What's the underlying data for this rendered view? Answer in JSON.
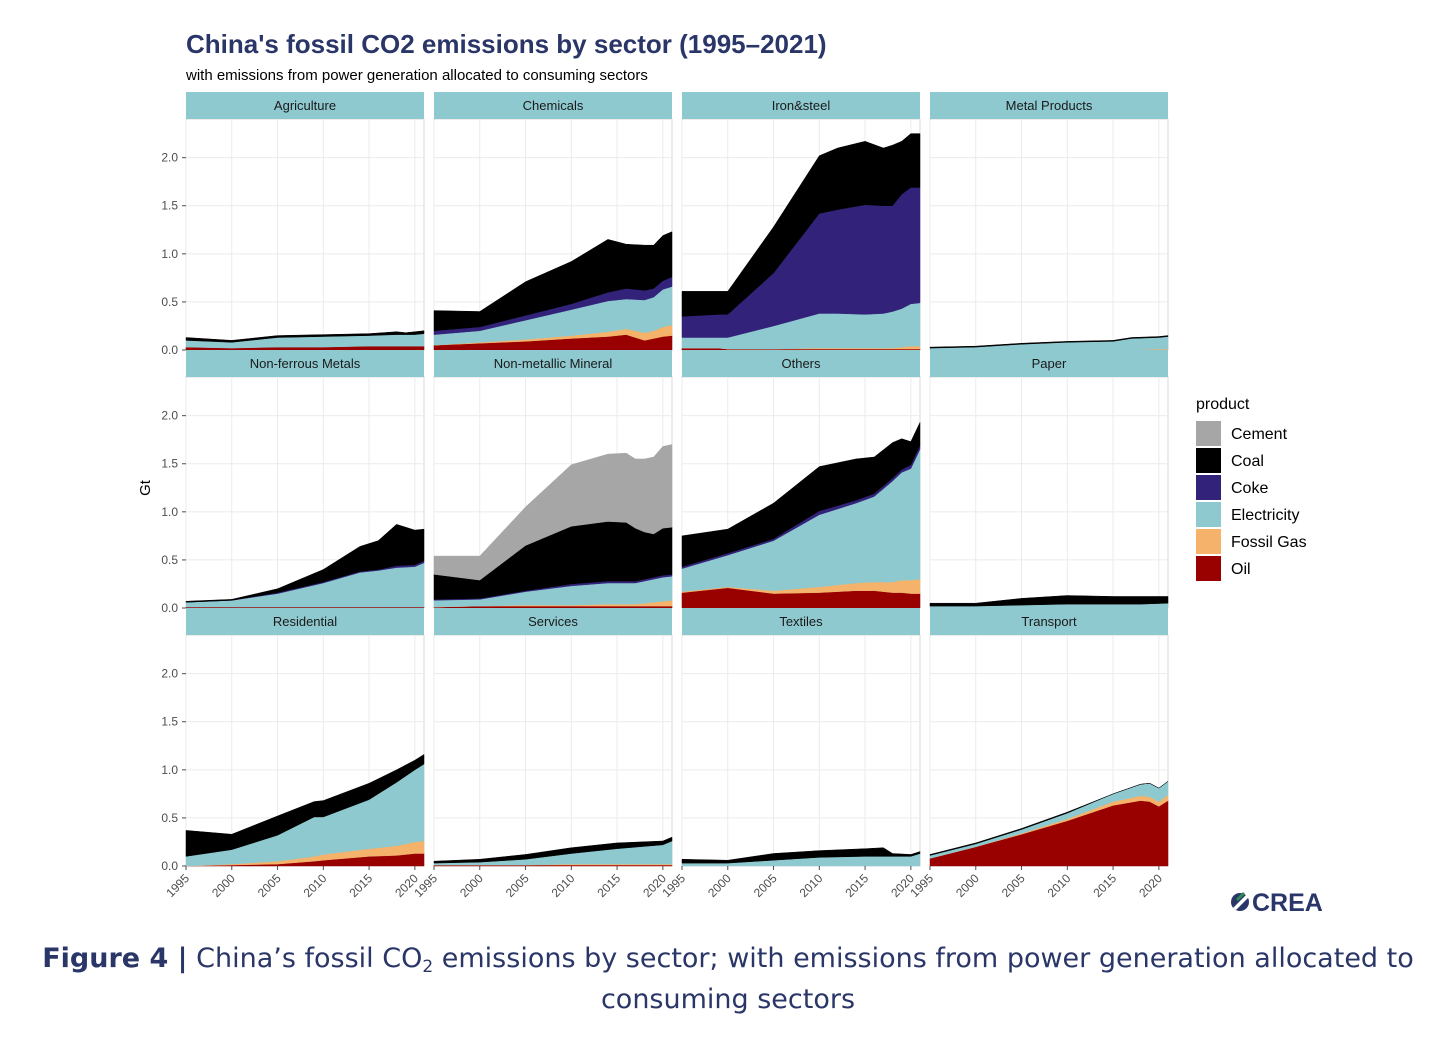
{
  "header": {
    "title": "China's fossil CO2 emissions by sector (1995–2021)",
    "subtitle": "with emissions from power generation allocated to consuming sectors"
  },
  "caption": {
    "label": "Figure 4 |",
    "text_a": "China’s fossil CO",
    "subscript": "2",
    "text_b": " emissions by sector; with emissions from power generation allocated to consuming sectors"
  },
  "logo": {
    "text": "CREA",
    "color": "#2a3668",
    "accent": "#2e8b57"
  },
  "chart_data": {
    "type": "area",
    "stacked": true,
    "facet_wrap": [
      3,
      4
    ],
    "ylabel": "Gt",
    "ylim": [
      0,
      2.35
    ],
    "yticks": [
      0,
      0.5,
      1,
      1.5,
      2
    ],
    "ytick_labels": [
      "0.0",
      "0.5",
      "1.0",
      "1.5",
      "2.0"
    ],
    "xlim": [
      1995,
      2021
    ],
    "xticks": [
      1995,
      2000,
      2005,
      2010,
      2015,
      2020
    ],
    "xtick_labels": [
      "1995",
      "2000",
      "2005",
      "2010",
      "2015",
      "2020"
    ],
    "grid": true,
    "legend": {
      "title": "product",
      "position": "right",
      "items": [
        {
          "name": "Cement",
          "color": "#a6a6a6"
        },
        {
          "name": "Coal",
          "color": "#000000"
        },
        {
          "name": "Coke",
          "color": "#33227a"
        },
        {
          "name": "Electricity",
          "color": "#8ec9d0"
        },
        {
          "name": "Fossil Gas",
          "color": "#f4b26b"
        },
        {
          "name": "Oil",
          "color": "#990000"
        }
      ]
    },
    "stack_order": [
      "Oil",
      "Fossil Gas",
      "Electricity",
      "Coke",
      "Coal",
      "Cement"
    ],
    "panels": [
      {
        "name": "Agriculture",
        "x": [
          1995,
          2000,
          2005,
          2010,
          2015,
          2018,
          2019,
          2020,
          2021
        ],
        "series": {
          "Oil": [
            0.03,
            0.02,
            0.03,
            0.03,
            0.04,
            0.04,
            0.04,
            0.04,
            0.04
          ],
          "Fossil Gas": [
            0,
            0,
            0,
            0,
            0,
            0,
            0,
            0,
            0
          ],
          "Electricity": [
            0.07,
            0.06,
            0.1,
            0.11,
            0.11,
            0.12,
            0.12,
            0.12,
            0.13
          ],
          "Coke": [
            0,
            0,
            0,
            0,
            0,
            0,
            0,
            0,
            0
          ],
          "Coal": [
            0.03,
            0.02,
            0.02,
            0.02,
            0.02,
            0.03,
            0.02,
            0.03,
            0.03
          ],
          "Cement": [
            0,
            0,
            0,
            0,
            0,
            0,
            0,
            0,
            0
          ]
        }
      },
      {
        "name": "Chemicals",
        "x": [
          1995,
          2000,
          2005,
          2010,
          2014,
          2016,
          2018,
          2019,
          2020,
          2021
        ],
        "series": {
          "Oil": [
            0.05,
            0.07,
            0.09,
            0.12,
            0.14,
            0.16,
            0.1,
            0.12,
            0.14,
            0.15
          ],
          "Fossil Gas": [
            0,
            0.01,
            0.02,
            0.03,
            0.05,
            0.06,
            0.08,
            0.08,
            0.1,
            0.11
          ],
          "Electricity": [
            0.11,
            0.12,
            0.2,
            0.27,
            0.32,
            0.31,
            0.34,
            0.35,
            0.39,
            0.4
          ],
          "Coke": [
            0.04,
            0.04,
            0.05,
            0.06,
            0.09,
            0.11,
            0.1,
            0.09,
            0.09,
            0.1
          ],
          "Coal": [
            0.21,
            0.16,
            0.35,
            0.44,
            0.55,
            0.46,
            0.47,
            0.45,
            0.47,
            0.47
          ],
          "Cement": [
            0,
            0,
            0,
            0,
            0,
            0,
            0,
            0,
            0,
            0
          ]
        }
      },
      {
        "name": "Iron&steel",
        "x": [
          1995,
          1999,
          2000,
          2005,
          2010,
          2012,
          2015,
          2017,
          2018,
          2019,
          2020,
          2021
        ],
        "series": {
          "Oil": [
            0.02,
            0.02,
            0.01,
            0.01,
            0.01,
            0.01,
            0.01,
            0.01,
            0.01,
            0.01,
            0.01,
            0.01
          ],
          "Fossil Gas": [
            0,
            0,
            0,
            0,
            0.01,
            0.01,
            0.01,
            0.01,
            0.01,
            0.02,
            0.03,
            0.03
          ],
          "Electricity": [
            0.11,
            0.11,
            0.12,
            0.24,
            0.36,
            0.36,
            0.35,
            0.36,
            0.38,
            0.4,
            0.44,
            0.45
          ],
          "Coke": [
            0.22,
            0.24,
            0.24,
            0.55,
            1.04,
            1.08,
            1.14,
            1.12,
            1.1,
            1.19,
            1.21,
            1.2
          ],
          "Coal": [
            0.26,
            0.24,
            0.24,
            0.48,
            0.6,
            0.64,
            0.66,
            0.6,
            0.63,
            0.55,
            0.56,
            0.56
          ],
          "Cement": [
            0,
            0,
            0,
            0,
            0,
            0,
            0,
            0,
            0,
            0,
            0,
            0
          ]
        }
      },
      {
        "name": "Metal Products",
        "x": [
          1995,
          2000,
          2005,
          2010,
          2015,
          2017,
          2020,
          2021
        ],
        "series": {
          "Oil": [
            0,
            0,
            0,
            0,
            0,
            0,
            0,
            0
          ],
          "Fossil Gas": [
            0,
            0,
            0,
            0,
            0,
            0,
            0.01,
            0.01
          ],
          "Electricity": [
            0.02,
            0.03,
            0.06,
            0.08,
            0.09,
            0.12,
            0.12,
            0.13
          ],
          "Coke": [
            0,
            0,
            0,
            0,
            0,
            0,
            0,
            0
          ],
          "Coal": [
            0.01,
            0.01,
            0.01,
            0.01,
            0.01,
            0.01,
            0.01,
            0.01
          ],
          "Cement": [
            0,
            0,
            0,
            0,
            0,
            0,
            0,
            0
          ]
        }
      },
      {
        "name": "Non-ferrous Metals",
        "x": [
          1995,
          2000,
          2005,
          2010,
          2014,
          2016,
          2018,
          2020,
          2021
        ],
        "series": {
          "Oil": [
            0.01,
            0.01,
            0.01,
            0.01,
            0.01,
            0.01,
            0.01,
            0.01,
            0.01
          ],
          "Fossil Gas": [
            0,
            0,
            0,
            0,
            0,
            0,
            0,
            0,
            0
          ],
          "Electricity": [
            0.05,
            0.07,
            0.14,
            0.25,
            0.36,
            0.38,
            0.41,
            0.42,
            0.46
          ],
          "Coke": [
            0,
            0,
            0.01,
            0.01,
            0.01,
            0.01,
            0.02,
            0.02,
            0.02
          ],
          "Coal": [
            0.01,
            0.01,
            0.04,
            0.13,
            0.26,
            0.3,
            0.43,
            0.36,
            0.33
          ],
          "Cement": [
            0,
            0,
            0,
            0,
            0,
            0,
            0,
            0,
            0
          ]
        }
      },
      {
        "name": "Non-metallic Mineral",
        "x": [
          1995,
          2000,
          2005,
          2010,
          2014,
          2016,
          2017,
          2018,
          2019,
          2020,
          2021
        ],
        "series": {
          "Oil": [
            0.01,
            0.02,
            0.02,
            0.02,
            0.02,
            0.02,
            0.02,
            0.02,
            0.02,
            0.02,
            0.02
          ],
          "Fossil Gas": [
            0,
            0,
            0.01,
            0.01,
            0.02,
            0.02,
            0.02,
            0.03,
            0.04,
            0.05,
            0.06
          ],
          "Electricity": [
            0.07,
            0.07,
            0.14,
            0.2,
            0.22,
            0.22,
            0.22,
            0.23,
            0.24,
            0.25,
            0.25
          ],
          "Coke": [
            0.01,
            0.01,
            0.01,
            0.02,
            0.02,
            0.02,
            0.02,
            0.02,
            0.02,
            0.02,
            0.02
          ],
          "Coal": [
            0.26,
            0.19,
            0.47,
            0.6,
            0.62,
            0.61,
            0.55,
            0.49,
            0.45,
            0.49,
            0.49
          ],
          "Cement": [
            0.19,
            0.25,
            0.4,
            0.64,
            0.7,
            0.72,
            0.72,
            0.76,
            0.8,
            0.85,
            0.86
          ]
        }
      },
      {
        "name": "Others",
        "x": [
          1995,
          2000,
          2005,
          2010,
          2014,
          2016,
          2018,
          2019,
          2020,
          2021
        ],
        "series": {
          "Oil": [
            0.16,
            0.21,
            0.15,
            0.16,
            0.18,
            0.18,
            0.16,
            0.16,
            0.15,
            0.15
          ],
          "Fossil Gas": [
            0.01,
            0.01,
            0.03,
            0.06,
            0.08,
            0.09,
            0.11,
            0.13,
            0.14,
            0.15
          ],
          "Electricity": [
            0.24,
            0.33,
            0.52,
            0.75,
            0.83,
            0.89,
            1.05,
            1.12,
            1.16,
            1.35
          ],
          "Coke": [
            0.02,
            0.02,
            0.02,
            0.04,
            0.03,
            0.03,
            0.03,
            0.03,
            0.04,
            0.04
          ],
          "Coal": [
            0.32,
            0.25,
            0.37,
            0.46,
            0.43,
            0.38,
            0.37,
            0.32,
            0.24,
            0.24
          ],
          "Cement": [
            0,
            0,
            0,
            0,
            0,
            0,
            0,
            0,
            0,
            0
          ]
        }
      },
      {
        "name": "Paper",
        "x": [
          1995,
          2000,
          2005,
          2010,
          2015,
          2018,
          2021
        ],
        "series": {
          "Oil": [
            0,
            0,
            0,
            0,
            0,
            0,
            0
          ],
          "Fossil Gas": [
            0,
            0,
            0,
            0,
            0,
            0,
            0
          ],
          "Electricity": [
            0.02,
            0.02,
            0.03,
            0.04,
            0.04,
            0.04,
            0.05
          ],
          "Coke": [
            0,
            0,
            0,
            0,
            0,
            0,
            0
          ],
          "Coal": [
            0.03,
            0.03,
            0.07,
            0.09,
            0.08,
            0.08,
            0.07
          ],
          "Cement": [
            0,
            0,
            0,
            0,
            0,
            0,
            0
          ]
        }
      },
      {
        "name": "Residential",
        "x": [
          1995,
          2000,
          2005,
          2009,
          2010,
          2015,
          2018,
          2020,
          2021
        ],
        "series": {
          "Oil": [
            0,
            0.01,
            0.02,
            0.05,
            0.06,
            0.1,
            0.11,
            0.13,
            0.13
          ],
          "Fossil Gas": [
            0,
            0.01,
            0.03,
            0.05,
            0.06,
            0.08,
            0.1,
            0.12,
            0.13
          ],
          "Electricity": [
            0.1,
            0.15,
            0.27,
            0.41,
            0.39,
            0.51,
            0.66,
            0.75,
            0.8
          ],
          "Coke": [
            0,
            0,
            0,
            0,
            0,
            0,
            0,
            0,
            0
          ],
          "Coal": [
            0.27,
            0.16,
            0.2,
            0.16,
            0.17,
            0.17,
            0.13,
            0.1,
            0.1
          ],
          "Cement": [
            0,
            0,
            0,
            0,
            0,
            0,
            0,
            0,
            0
          ]
        }
      },
      {
        "name": "Services",
        "x": [
          1995,
          2000,
          2005,
          2010,
          2015,
          2020,
          2021
        ],
        "series": {
          "Oil": [
            0.01,
            0.01,
            0.01,
            0.01,
            0.01,
            0.01,
            0.01
          ],
          "Fossil Gas": [
            0,
            0,
            0,
            0.01,
            0.01,
            0.01,
            0.01
          ],
          "Electricity": [
            0.02,
            0.03,
            0.06,
            0.11,
            0.16,
            0.2,
            0.24
          ],
          "Coke": [
            0,
            0,
            0,
            0,
            0,
            0,
            0
          ],
          "Coal": [
            0.02,
            0.03,
            0.05,
            0.06,
            0.06,
            0.04,
            0.04
          ],
          "Cement": [
            0,
            0,
            0,
            0,
            0,
            0,
            0
          ]
        }
      },
      {
        "name": "Textiles",
        "x": [
          1995,
          2000,
          2005,
          2010,
          2015,
          2017,
          2018,
          2020,
          2021
        ],
        "series": {
          "Oil": [
            0,
            0,
            0,
            0,
            0,
            0,
            0,
            0,
            0
          ],
          "Fossil Gas": [
            0,
            0,
            0,
            0,
            0,
            0,
            0,
            0,
            0
          ],
          "Electricity": [
            0.03,
            0.03,
            0.06,
            0.09,
            0.1,
            0.1,
            0.1,
            0.1,
            0.13
          ],
          "Coke": [
            0,
            0,
            0,
            0,
            0,
            0,
            0,
            0,
            0
          ],
          "Coal": [
            0.04,
            0.03,
            0.07,
            0.07,
            0.08,
            0.09,
            0.03,
            0.02,
            0.02
          ],
          "Cement": [
            0,
            0,
            0,
            0,
            0,
            0,
            0,
            0,
            0
          ]
        }
      },
      {
        "name": "Transport",
        "x": [
          1995,
          2000,
          2005,
          2010,
          2015,
          2018,
          2019,
          2020,
          2021
        ],
        "series": {
          "Oil": [
            0.08,
            0.2,
            0.33,
            0.47,
            0.63,
            0.68,
            0.67,
            0.62,
            0.68
          ],
          "Fossil Gas": [
            0,
            0,
            0.01,
            0.02,
            0.04,
            0.05,
            0.05,
            0.05,
            0.06
          ],
          "Electricity": [
            0.03,
            0.03,
            0.04,
            0.06,
            0.08,
            0.12,
            0.14,
            0.14,
            0.14
          ],
          "Coke": [
            0,
            0,
            0,
            0,
            0,
            0,
            0,
            0,
            0
          ],
          "Coal": [
            0.01,
            0.01,
            0.01,
            0.01,
            0,
            0,
            0,
            0,
            0
          ],
          "Cement": [
            0,
            0,
            0,
            0,
            0,
            0,
            0,
            0,
            0
          ]
        }
      }
    ]
  }
}
